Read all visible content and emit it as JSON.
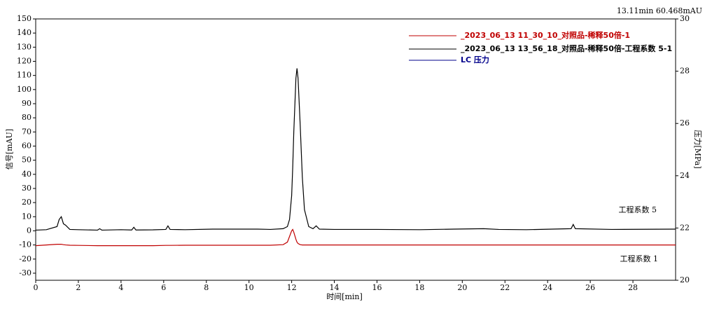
{
  "chart_data": {
    "type": "line",
    "x_label": "时间[min]",
    "y_label": "信号[mAU]",
    "y2_label": "压力[MPa]",
    "annotations": [
      "13.11min 60.468mAU",
      "工程系数 5",
      "工程系数 1"
    ],
    "xlim": [
      0,
      30
    ],
    "xticks": [
      0,
      2,
      4,
      6,
      8,
      10,
      12,
      14,
      16,
      18,
      20,
      22,
      24,
      26,
      28
    ],
    "ylim": [
      -35,
      150
    ],
    "yticks": [
      -30,
      -20,
      -10,
      0,
      10,
      20,
      30,
      40,
      50,
      60,
      70,
      80,
      90,
      100,
      110,
      120,
      130,
      140,
      150
    ],
    "y2lim": [
      20,
      30
    ],
    "y2ticks": [
      20,
      22,
      24,
      26,
      28,
      30
    ],
    "x": [
      0,
      0.5,
      1.0,
      1.1,
      1.2,
      1.3,
      1.4,
      1.6,
      2.0,
      2.9,
      3.0,
      3.1,
      4.0,
      4.5,
      4.6,
      4.7,
      5.5,
      6.1,
      6.2,
      6.3,
      7.0,
      8.3,
      9.0,
      10.4,
      11.0,
      11.6,
      11.8,
      11.9,
      12.0,
      12.05,
      12.1,
      12.2,
      12.25,
      12.3,
      12.4,
      12.5,
      12.6,
      12.8,
      13.0,
      13.15,
      13.3,
      14.0,
      16.0,
      18.0,
      19.6,
      21.0,
      21.7,
      23.0,
      25.1,
      25.2,
      25.3,
      27.0,
      30.0
    ],
    "series": [
      {
        "name": "_2023_06_13  11_30_10_对照品-稀释50倍-1",
        "color": "#c00000",
        "values": [
          -10.5,
          -10,
          -9.5,
          -9.5,
          -9.5,
          -9.8,
          -10,
          -10.2,
          -10.3,
          -10.5,
          -10.5,
          -10.5,
          -10.5,
          -10.5,
          -10.5,
          -10.5,
          -10.5,
          -10.3,
          -10.3,
          -10.3,
          -10.2,
          -10.2,
          -10.2,
          -10.2,
          -10.2,
          -9.8,
          -8,
          -4,
          0,
          1,
          -1,
          -6,
          -8,
          -9,
          -9.8,
          -10,
          -10,
          -10,
          -10,
          -10,
          -10,
          -10,
          -10,
          -10,
          -10,
          -10,
          -10,
          -10,
          -10,
          -10,
          -10,
          -10,
          -10
        ]
      },
      {
        "name": "_2023_06_13  13_56_18_对照品-稀释50倍-工程系数 5-1",
        "color": "#000000",
        "values": [
          0.5,
          0.8,
          3,
          8,
          10,
          5,
          4,
          1,
          0.8,
          0.5,
          1.5,
          0.5,
          0.8,
          0.6,
          2.5,
          0.6,
          0.7,
          1,
          3.5,
          1,
          0.8,
          1.2,
          1.2,
          1.2,
          1,
          1.5,
          3,
          8,
          25,
          45,
          70,
          108,
          115,
          108,
          75,
          38,
          15,
          3,
          1.5,
          3.5,
          1.2,
          1,
          1,
          0.8,
          1.2,
          1.5,
          1,
          0.8,
          1.5,
          4.5,
          1.5,
          1,
          1.2
        ]
      },
      {
        "name": "LC 压力",
        "color": "#00008b",
        "axis": "y2",
        "values": [
          null,
          null,
          null,
          null,
          null,
          null,
          null,
          null,
          null,
          null,
          null,
          null,
          null,
          null,
          null,
          null,
          null,
          null,
          null,
          null,
          null,
          null,
          null,
          null,
          null,
          null,
          null,
          null,
          null,
          null,
          null,
          null,
          null,
          null,
          null,
          null,
          null,
          null,
          null,
          null,
          null,
          null,
          null,
          null,
          null,
          null,
          null,
          null,
          null,
          null,
          null,
          null,
          null
        ]
      }
    ]
  }
}
